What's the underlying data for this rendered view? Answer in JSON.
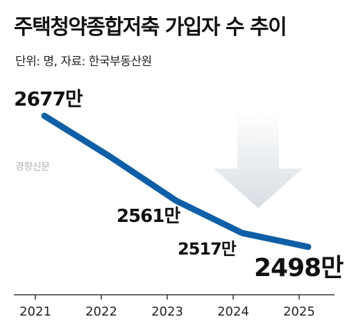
{
  "chart_data": {
    "type": "line",
    "title": "주택청약종합저축 가입자 수 추이",
    "subtitle": "단위: 명, 자료: 한국부동산원",
    "watermark": "경향신문",
    "categories": [
      "2021",
      "2022",
      "2023",
      "2024",
      "2025"
    ],
    "series": [
      {
        "values": [
          26770000,
          26210000,
          25610000,
          25170000,
          24980000
        ]
      }
    ],
    "point_labels": [
      "2677만",
      "",
      "2561만",
      "2517만",
      "2498만"
    ],
    "ylim": [
      24700000,
      27200000
    ],
    "grid": false,
    "legend": "none",
    "line_color": "#0f5fa6",
    "arrow_color_top": "#ffffff",
    "arrow_color_bottom": "#d7dde3"
  }
}
